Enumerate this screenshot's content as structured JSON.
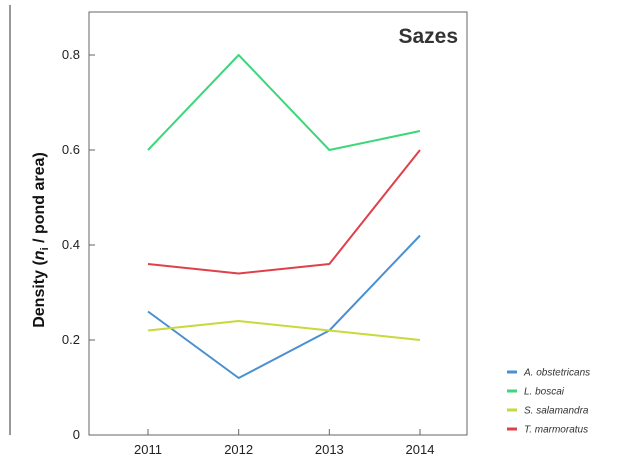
{
  "chart_data": {
    "type": "line",
    "title": "Sazes",
    "xlabel": "",
    "ylabel_parts": {
      "pre": "Density (",
      "n": "n",
      "sub": "i",
      "post": " / pond area)"
    },
    "x": [
      2011,
      2012,
      2013,
      2014
    ],
    "x_tick_labels": [
      "2011",
      "2012",
      "2013",
      "2014"
    ],
    "ylim": [
      0,
      0.8
    ],
    "y_ticks": [
      0,
      0.2,
      0.4,
      0.6,
      0.8
    ],
    "y_tick_labels": [
      "0",
      "0.2",
      "0.4",
      "0.6",
      "0.8"
    ],
    "grid": false,
    "legend_position": "bottom-right outside",
    "series": [
      {
        "name": "A. obstetricans",
        "color": "#4a90d0",
        "values": [
          0.26,
          0.12,
          0.22,
          0.42
        ]
      },
      {
        "name": "L. boscai",
        "color": "#3dd67a",
        "values": [
          0.6,
          0.8,
          0.6,
          0.64
        ]
      },
      {
        "name": "S. salamandra",
        "color": "#c8d93a",
        "values": [
          0.22,
          0.24,
          0.22,
          0.2
        ]
      },
      {
        "name": "T. marmoratus",
        "color": "#e0404a",
        "values": [
          0.36,
          0.34,
          0.36,
          0.6
        ]
      }
    ]
  }
}
